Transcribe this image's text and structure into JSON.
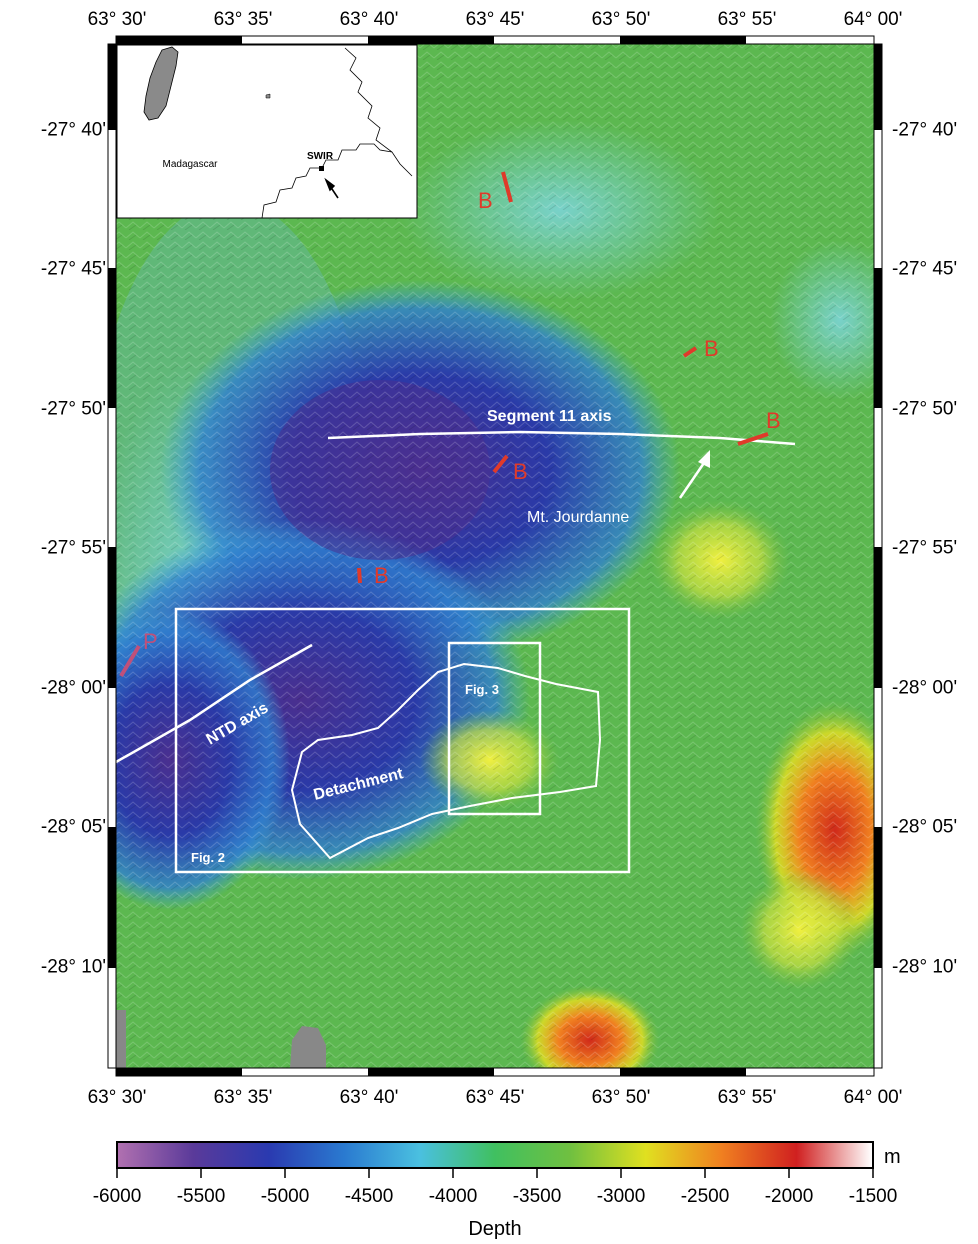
{
  "axes": {
    "lon_ticks": [
      "63° 30'",
      "63° 35'",
      "63° 40'",
      "63° 45'",
      "63° 50'",
      "63° 55'",
      "64° 00'"
    ],
    "lat_ticks": [
      "-27° 40'",
      "-27° 45'",
      "-27° 50'",
      "-27° 55'",
      "-28° 00'",
      "-28° 05'",
      "-28° 10'"
    ]
  },
  "inset": {
    "country_label": "Madagascar",
    "ridge_label": "SWIR"
  },
  "annotations": {
    "segment_axis": "Segment 11 axis",
    "seamount": "Mt. Jourdanne",
    "ntd_axis": "NTD axis",
    "detachment": "Detachment",
    "fig2_box": "Fig. 2",
    "fig3_box": "Fig. 3",
    "marker_b": "B",
    "marker_p": "P"
  },
  "colorbar": {
    "ticks": [
      "-6000",
      "-5500",
      "-5000",
      "-4500",
      "-4000",
      "-3500",
      "-3000",
      "-2500",
      "-2000",
      "-1500"
    ],
    "unit": "m",
    "title": "Depth",
    "colors": [
      "#b070b0",
      "#5a3a9a",
      "#2a3ab0",
      "#2a7ad0",
      "#4ac0e0",
      "#40c060",
      "#70c040",
      "#e0e020",
      "#f08020",
      "#d02020",
      "#ffffff"
    ]
  },
  "map_colors": {
    "deep": "#3a3aa8",
    "mid": "#3aa0d8",
    "shallow": "#5ab84a",
    "annotation": "#ffffff",
    "marker": "#e03a2a",
    "marker_p": "#c0507a",
    "land": "#888888"
  }
}
